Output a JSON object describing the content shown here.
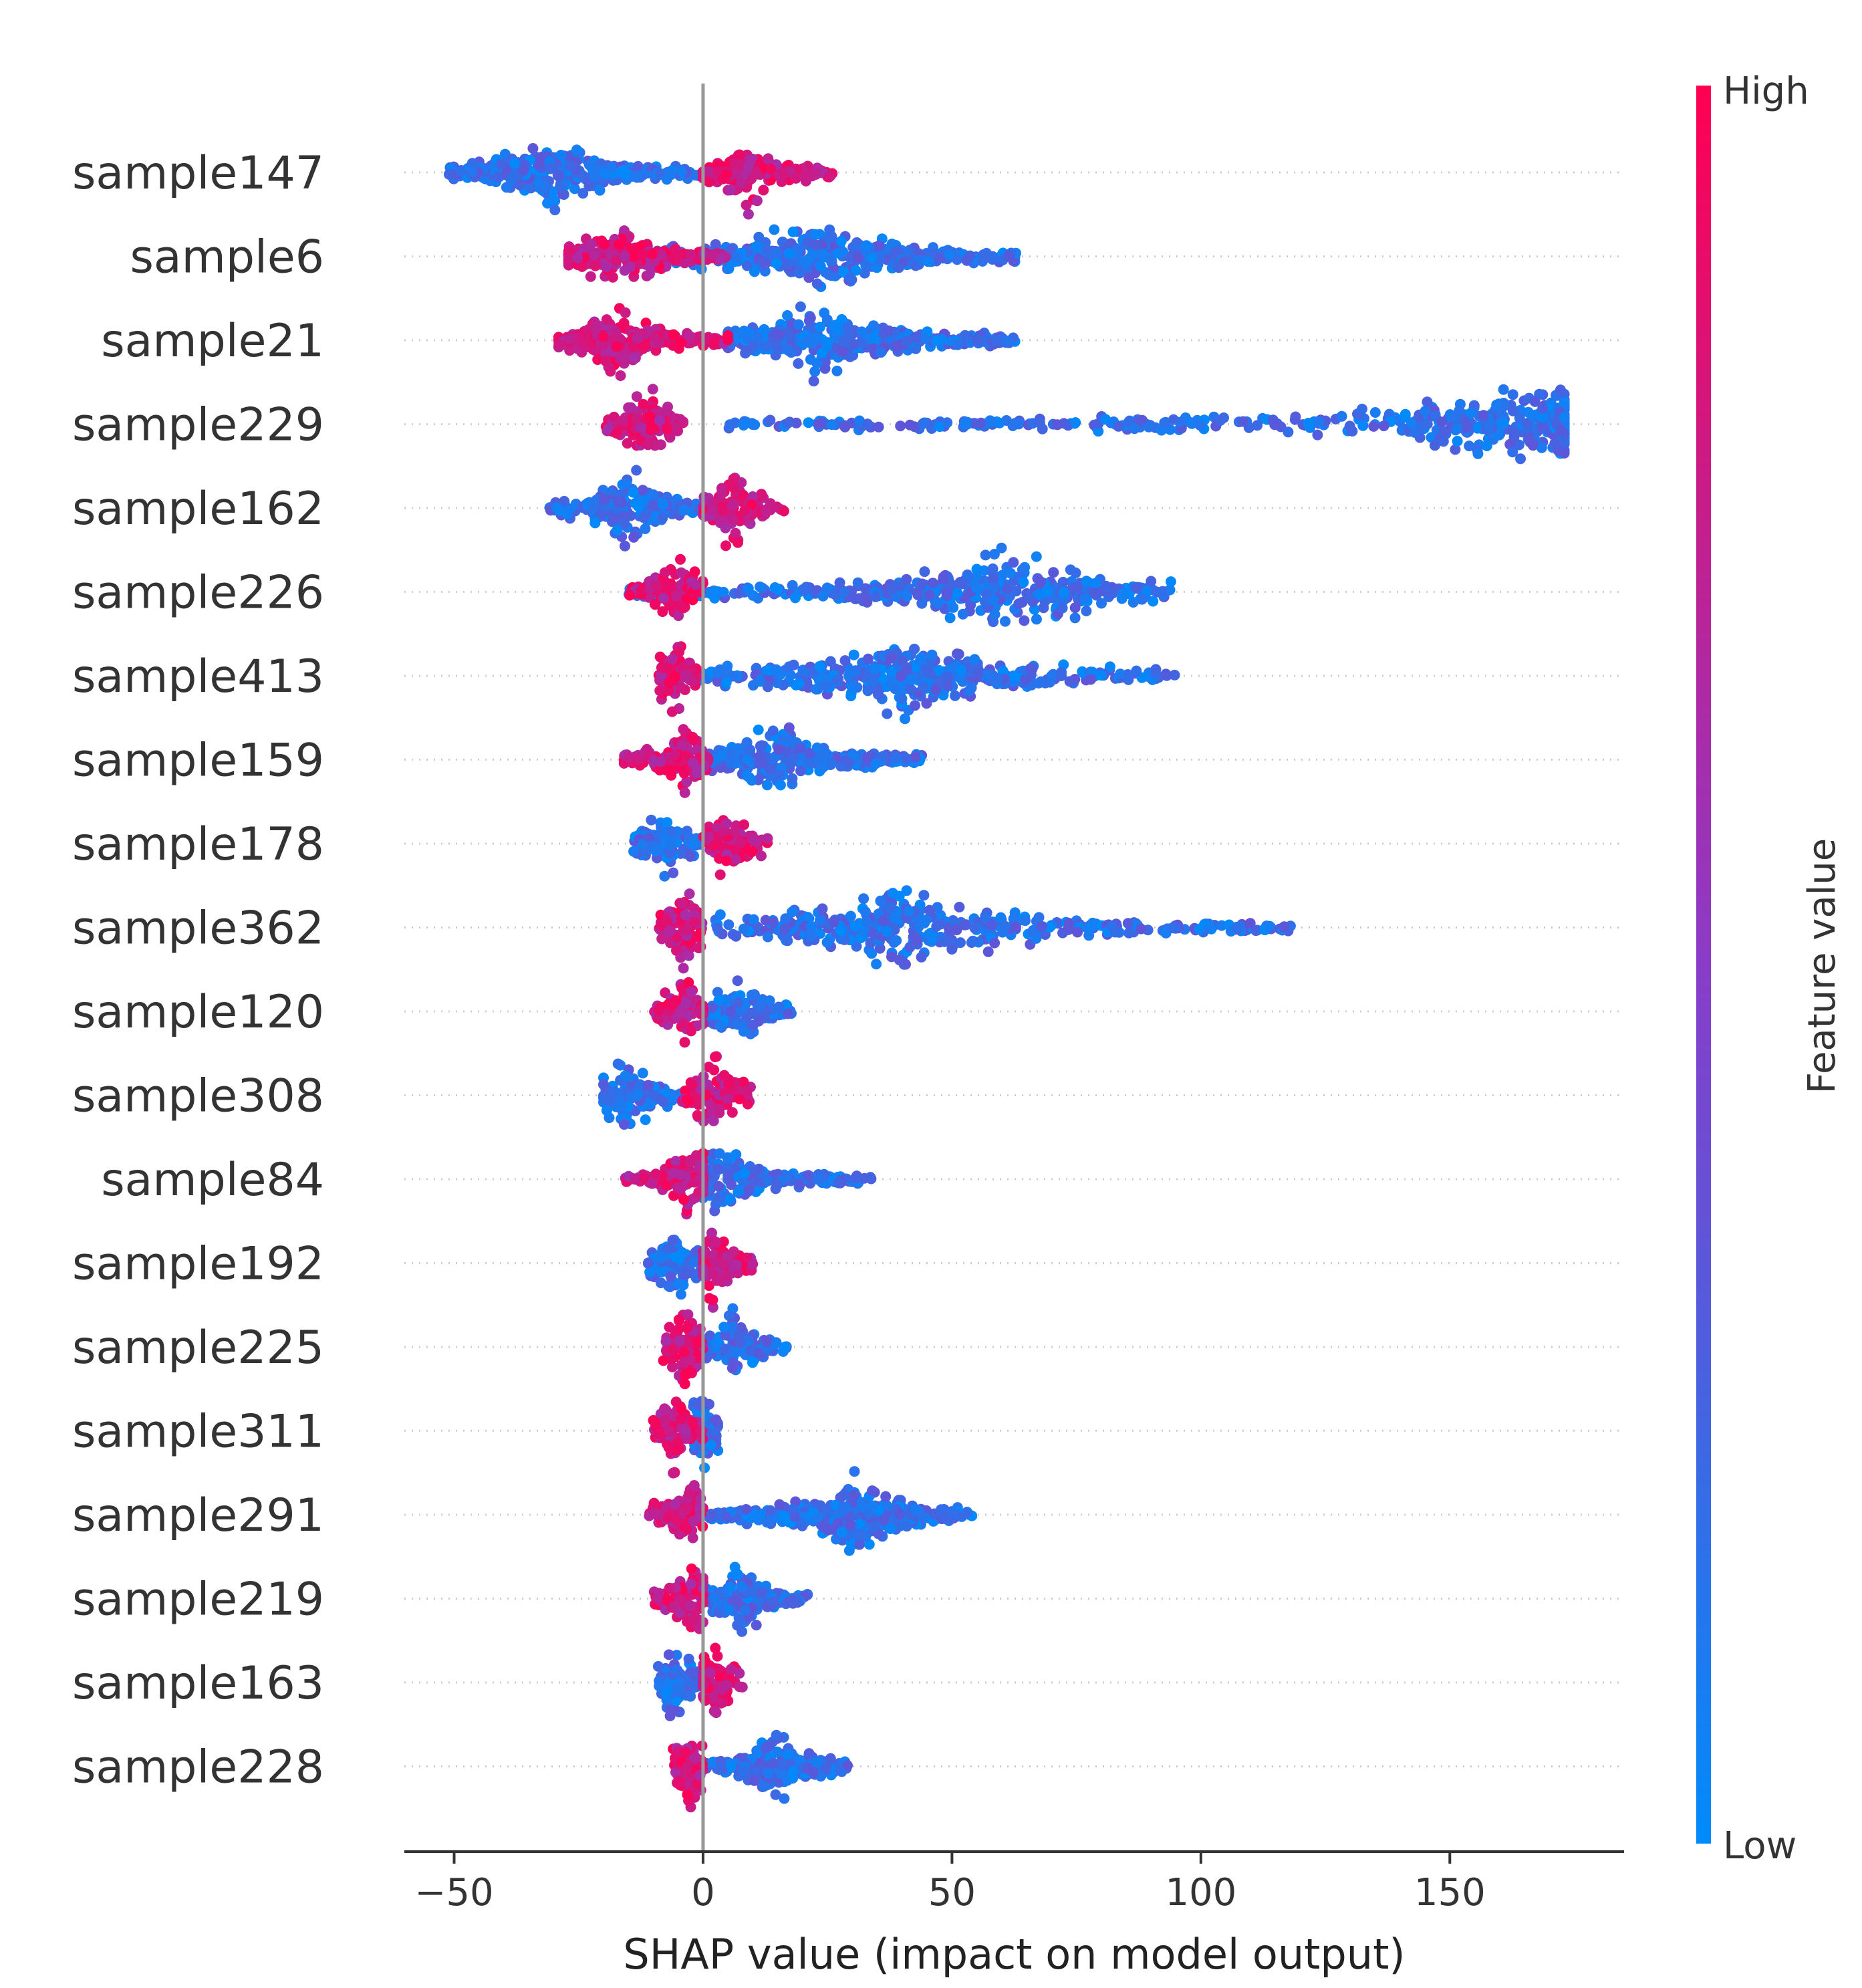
{
  "chart_data": {
    "type": "beeswarm",
    "title": "",
    "xlabel": "SHAP value (impact on model output)",
    "ylabel": "",
    "xlim": [
      -60,
      185
    ],
    "xticks": [
      -50,
      0,
      50,
      100,
      150
    ],
    "xtick_labels": [
      "−50",
      "0",
      "50",
      "100",
      "150"
    ],
    "zero_line": 0,
    "colorbar": {
      "label": "Feature value",
      "high_label": "High",
      "low_label": "Low",
      "high_color": "#ff0052",
      "low_color": "#008bfb"
    },
    "features": [
      {
        "name": "sample147",
        "high_range": [
          0,
          26
        ],
        "high_peak": 9,
        "low_range": [
          -51,
          0
        ],
        "low_peak": -30
      },
      {
        "name": "sample6",
        "high_range": [
          -27,
          5
        ],
        "high_peak": -18,
        "low_range": [
          -10,
          63
        ],
        "low_peak": 23
      },
      {
        "name": "sample21",
        "high_range": [
          -29,
          5
        ],
        "high_peak": -17,
        "low_range": [
          5,
          63
        ],
        "low_peak": 23
      },
      {
        "name": "sample229",
        "high_range": [
          -20,
          -4
        ],
        "high_peak": -11,
        "low_range": [
          5,
          173
        ],
        "low_peak": 165
      },
      {
        "name": "sample162",
        "high_range": [
          0,
          17
        ],
        "high_peak": 6,
        "low_range": [
          -31,
          0
        ],
        "low_peak": -15
      },
      {
        "name": "sample226",
        "high_range": [
          -15,
          0
        ],
        "high_peak": -6,
        "low_range": [
          -15,
          94
        ],
        "low_peak": 60
      },
      {
        "name": "sample413",
        "high_range": [
          -9,
          -1
        ],
        "high_peak": -6,
        "low_range": [
          -9,
          95
        ],
        "low_peak": 40
      },
      {
        "name": "sample159",
        "high_range": [
          -16,
          1
        ],
        "high_peak": -3,
        "low_range": [
          0,
          44
        ],
        "low_peak": 15
      },
      {
        "name": "sample178",
        "high_range": [
          0,
          13
        ],
        "high_peak": 4,
        "low_range": [
          -14,
          0
        ],
        "low_peak": -8
      },
      {
        "name": "sample362",
        "high_range": [
          -9,
          0
        ],
        "high_peak": -4,
        "low_range": [
          2,
          118
        ],
        "low_peak": 40
      },
      {
        "name": "sample120",
        "high_range": [
          -10,
          0
        ],
        "high_peak": -4,
        "low_range": [
          0,
          18
        ],
        "low_peak": 7
      },
      {
        "name": "sample308",
        "high_range": [
          -5,
          10
        ],
        "high_peak": 2,
        "low_range": [
          -20,
          0
        ],
        "low_peak": -15
      },
      {
        "name": "sample84",
        "high_range": [
          -16,
          0
        ],
        "high_peak": -3,
        "low_range": [
          0,
          34
        ],
        "low_peak": 4
      },
      {
        "name": "sample192",
        "high_range": [
          0,
          10
        ],
        "high_peak": 2,
        "low_range": [
          -11,
          0
        ],
        "low_peak": -6
      },
      {
        "name": "sample225",
        "high_range": [
          -8,
          0
        ],
        "high_peak": -4,
        "low_range": [
          0,
          17
        ],
        "low_peak": 6
      },
      {
        "name": "sample311",
        "high_range": [
          -10,
          0
        ],
        "high_peak": -6,
        "low_range": [
          -2,
          3
        ],
        "low_peak": 0
      },
      {
        "name": "sample291",
        "high_range": [
          -11,
          0
        ],
        "high_peak": -3,
        "low_range": [
          0,
          54
        ],
        "low_peak": 30
      },
      {
        "name": "sample219",
        "high_range": [
          -10,
          0
        ],
        "high_peak": -2,
        "low_range": [
          0,
          21
        ],
        "low_peak": 8
      },
      {
        "name": "sample163",
        "high_range": [
          0,
          8
        ],
        "high_peak": 2,
        "low_range": [
          -9,
          0
        ],
        "low_peak": -5
      },
      {
        "name": "sample228",
        "high_range": [
          -6,
          0
        ],
        "high_peak": -3,
        "low_range": [
          0,
          29
        ],
        "low_peak": 15
      }
    ]
  }
}
